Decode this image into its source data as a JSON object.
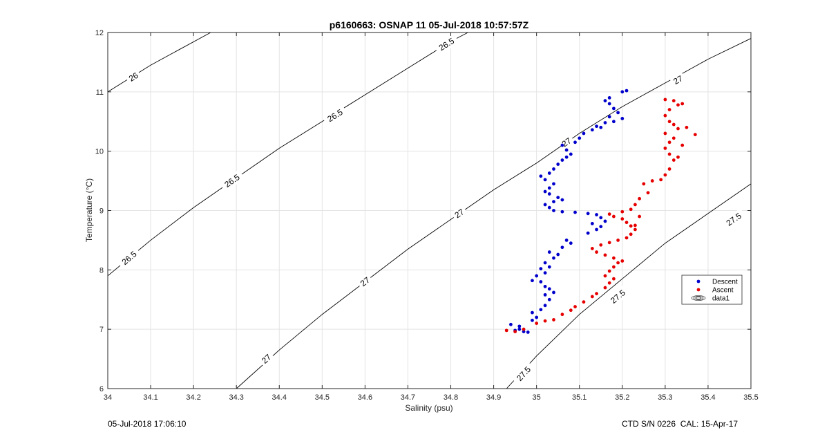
{
  "figure": {
    "footer_left": "05-Jul-2018 17:06:10",
    "footer_right": "CTD S/N 0226  CAL: 15-Apr-17"
  },
  "chart_data": {
    "type": "scatter",
    "title": "p6160663: OSNAP 11 05-Jul-2018 10:57:57Z",
    "xlabel": "Salinity (psu)",
    "ylabel": "Temperature (°C)",
    "xlim": [
      34,
      35.5
    ],
    "ylim": [
      6,
      12
    ],
    "xticks": [
      34,
      34.1,
      34.2,
      34.3,
      34.4,
      34.5,
      34.6,
      34.7,
      34.8,
      34.9,
      35,
      35.1,
      35.2,
      35.3,
      35.4,
      35.5
    ],
    "xtick_labels": [
      "34",
      "34.1",
      "34.2",
      "34.3",
      "34.4",
      "34.5",
      "34.6",
      "34.7",
      "34.8",
      "34.9",
      "35",
      "35.1",
      "35.2",
      "35.3",
      "35.4",
      "35.5"
    ],
    "yticks": [
      6,
      7,
      8,
      9,
      10,
      11,
      12
    ],
    "ytick_labels": [
      "6",
      "7",
      "8",
      "9",
      "10",
      "11",
      "12"
    ],
    "grid": true,
    "legend": {
      "placement": "right",
      "entries": [
        {
          "label": "Descent",
          "color": "#0000cc",
          "marker": "dot"
        },
        {
          "label": "Ascent",
          "color": "#e60000",
          "marker": "dot"
        },
        {
          "label": "data1",
          "color": "#000000",
          "marker": "contour"
        }
      ]
    },
    "contours": [
      {
        "level": "26",
        "points": [
          [
            34,
            11.0
          ],
          [
            34.1,
            11.45
          ],
          [
            34.24,
            12.0
          ]
        ],
        "labels": [
          {
            "x": 34.06,
            "y": 11.25,
            "text": "26"
          }
        ]
      },
      {
        "level": "26.5",
        "points": [
          [
            34,
            7.9
          ],
          [
            34.1,
            8.5
          ],
          [
            34.2,
            9.05
          ],
          [
            34.3,
            9.55
          ],
          [
            34.4,
            10.05
          ],
          [
            34.5,
            10.5
          ],
          [
            34.6,
            10.95
          ],
          [
            34.7,
            11.4
          ],
          [
            34.8,
            11.85
          ],
          [
            34.84,
            12.0
          ]
        ],
        "labels": [
          {
            "x": 34.05,
            "y": 8.2,
            "text": "26.5"
          },
          {
            "x": 34.29,
            "y": 9.5,
            "text": "26.5"
          },
          {
            "x": 34.53,
            "y": 10.6,
            "text": "26.5"
          },
          {
            "x": 34.79,
            "y": 11.8,
            "text": "26.5"
          }
        ]
      },
      {
        "level": "27",
        "points": [
          [
            34.3,
            6.0
          ],
          [
            34.4,
            6.65
          ],
          [
            34.5,
            7.25
          ],
          [
            34.6,
            7.8
          ],
          [
            34.7,
            8.35
          ],
          [
            34.8,
            8.85
          ],
          [
            34.9,
            9.35
          ],
          [
            35.0,
            9.8
          ],
          [
            35.1,
            10.3
          ],
          [
            35.2,
            10.75
          ],
          [
            35.3,
            11.15
          ],
          [
            35.4,
            11.55
          ],
          [
            35.5,
            11.9
          ]
        ],
        "labels": [
          {
            "x": 34.37,
            "y": 6.5,
            "text": "27"
          },
          {
            "x": 34.6,
            "y": 7.8,
            "text": "27"
          },
          {
            "x": 34.82,
            "y": 8.95,
            "text": "27"
          },
          {
            "x": 35.07,
            "y": 10.15,
            "text": "27"
          },
          {
            "x": 35.33,
            "y": 11.2,
            "text": "27"
          }
        ]
      },
      {
        "level": "27.5",
        "points": [
          [
            34.93,
            6.0
          ],
          [
            35.0,
            6.55
          ],
          [
            35.1,
            7.25
          ],
          [
            35.2,
            7.85
          ],
          [
            35.3,
            8.45
          ],
          [
            35.4,
            8.95
          ],
          [
            35.5,
            9.45
          ]
        ],
        "labels": [
          {
            "x": 34.97,
            "y": 6.25,
            "text": "27.5"
          },
          {
            "x": 35.19,
            "y": 7.55,
            "text": "27.5"
          },
          {
            "x": 35.46,
            "y": 8.85,
            "text": "27.5"
          }
        ]
      }
    ],
    "series": [
      {
        "name": "Descent",
        "color": "#0000cc",
        "points": [
          [
            34.95,
            6.98
          ],
          [
            34.96,
            7.0
          ],
          [
            34.97,
            6.96
          ],
          [
            34.98,
            6.95
          ],
          [
            34.96,
            7.05
          ],
          [
            34.94,
            7.08
          ],
          [
            34.99,
            7.15
          ],
          [
            35.0,
            7.2
          ],
          [
            34.99,
            7.28
          ],
          [
            35.01,
            7.33
          ],
          [
            35.02,
            7.4
          ],
          [
            35.03,
            7.5
          ],
          [
            35.02,
            7.58
          ],
          [
            35.04,
            7.62
          ],
          [
            35.03,
            7.68
          ],
          [
            35.02,
            7.72
          ],
          [
            35.01,
            7.8
          ],
          [
            34.99,
            7.82
          ],
          [
            35.0,
            7.9
          ],
          [
            35.02,
            7.95
          ],
          [
            35.01,
            8.02
          ],
          [
            35.03,
            8.05
          ],
          [
            35.02,
            8.12
          ],
          [
            35.04,
            8.2
          ],
          [
            35.05,
            8.26
          ],
          [
            35.03,
            8.3
          ],
          [
            35.06,
            8.38
          ],
          [
            35.08,
            8.45
          ],
          [
            35.07,
            8.5
          ],
          [
            35.12,
            8.62
          ],
          [
            35.14,
            8.68
          ],
          [
            35.15,
            8.73
          ],
          [
            35.13,
            8.78
          ],
          [
            35.16,
            8.82
          ],
          [
            35.15,
            8.88
          ],
          [
            35.14,
            8.93
          ],
          [
            35.12,
            8.95
          ],
          [
            35.09,
            8.97
          ],
          [
            35.06,
            8.98
          ],
          [
            35.04,
            9.0
          ],
          [
            35.03,
            9.05
          ],
          [
            35.02,
            9.1
          ],
          [
            35.04,
            9.15
          ],
          [
            35.06,
            9.18
          ],
          [
            35.05,
            9.22
          ],
          [
            35.03,
            9.28
          ],
          [
            35.02,
            9.32
          ],
          [
            35.03,
            9.38
          ],
          [
            35.04,
            9.45
          ],
          [
            35.02,
            9.52
          ],
          [
            35.01,
            9.58
          ],
          [
            35.03,
            9.63
          ],
          [
            35.04,
            9.7
          ],
          [
            35.05,
            9.78
          ],
          [
            35.06,
            9.85
          ],
          [
            35.07,
            9.9
          ],
          [
            35.08,
            9.95
          ],
          [
            35.07,
            10.02
          ],
          [
            35.06,
            10.1
          ],
          [
            35.09,
            10.15
          ],
          [
            35.1,
            10.22
          ],
          [
            35.11,
            10.3
          ],
          [
            35.13,
            10.36
          ],
          [
            35.14,
            10.42
          ],
          [
            35.16,
            10.48
          ],
          [
            35.18,
            10.5
          ],
          [
            35.17,
            10.58
          ],
          [
            35.19,
            10.65
          ],
          [
            35.18,
            10.72
          ],
          [
            35.17,
            10.8
          ],
          [
            35.16,
            10.85
          ],
          [
            35.17,
            10.9
          ],
          [
            35.2,
            11.0
          ],
          [
            35.21,
            11.02
          ],
          [
            35.2,
            10.55
          ],
          [
            35.15,
            10.4
          ]
        ]
      },
      {
        "name": "Ascent",
        "color": "#e60000",
        "points": [
          [
            34.93,
            6.98
          ],
          [
            34.95,
            6.96
          ],
          [
            34.97,
            7.0
          ],
          [
            35.0,
            7.1
          ],
          [
            35.02,
            7.14
          ],
          [
            35.04,
            7.16
          ],
          [
            35.06,
            7.25
          ],
          [
            35.08,
            7.32
          ],
          [
            35.09,
            7.38
          ],
          [
            35.11,
            7.46
          ],
          [
            35.13,
            7.55
          ],
          [
            35.14,
            7.6
          ],
          [
            35.16,
            7.7
          ],
          [
            35.17,
            7.78
          ],
          [
            35.18,
            7.85
          ],
          [
            35.16,
            7.9
          ],
          [
            35.17,
            7.98
          ],
          [
            35.18,
            8.05
          ],
          [
            35.19,
            8.12
          ],
          [
            35.2,
            8.15
          ],
          [
            35.18,
            8.2
          ],
          [
            35.16,
            8.25
          ],
          [
            35.14,
            8.3
          ],
          [
            35.13,
            8.36
          ],
          [
            35.15,
            8.42
          ],
          [
            35.17,
            8.46
          ],
          [
            35.19,
            8.5
          ],
          [
            35.21,
            8.54
          ],
          [
            35.22,
            8.6
          ],
          [
            35.23,
            8.68
          ],
          [
            35.22,
            8.74
          ],
          [
            35.21,
            8.8
          ],
          [
            35.2,
            8.86
          ],
          [
            35.18,
            8.9
          ],
          [
            35.17,
            8.94
          ],
          [
            35.2,
            8.98
          ],
          [
            35.22,
            9.02
          ],
          [
            35.23,
            9.1
          ],
          [
            35.24,
            9.2
          ],
          [
            35.26,
            9.3
          ],
          [
            35.25,
            9.45
          ],
          [
            35.27,
            9.5
          ],
          [
            35.29,
            9.52
          ],
          [
            35.3,
            9.6
          ],
          [
            35.31,
            9.7
          ],
          [
            35.32,
            9.85
          ],
          [
            35.31,
            9.95
          ],
          [
            35.3,
            10.05
          ],
          [
            35.31,
            10.15
          ],
          [
            35.32,
            10.22
          ],
          [
            35.3,
            10.3
          ],
          [
            35.33,
            10.38
          ],
          [
            35.32,
            10.45
          ],
          [
            35.31,
            10.5
          ],
          [
            35.3,
            10.6
          ],
          [
            35.31,
            10.7
          ],
          [
            35.33,
            10.78
          ],
          [
            35.32,
            10.85
          ],
          [
            35.3,
            10.87
          ],
          [
            35.34,
            10.8
          ],
          [
            35.35,
            10.4
          ],
          [
            35.37,
            10.28
          ],
          [
            35.34,
            10.1
          ],
          [
            35.33,
            9.9
          ],
          [
            35.24,
            8.9
          ],
          [
            35.23,
            8.75
          ]
        ]
      }
    ]
  }
}
